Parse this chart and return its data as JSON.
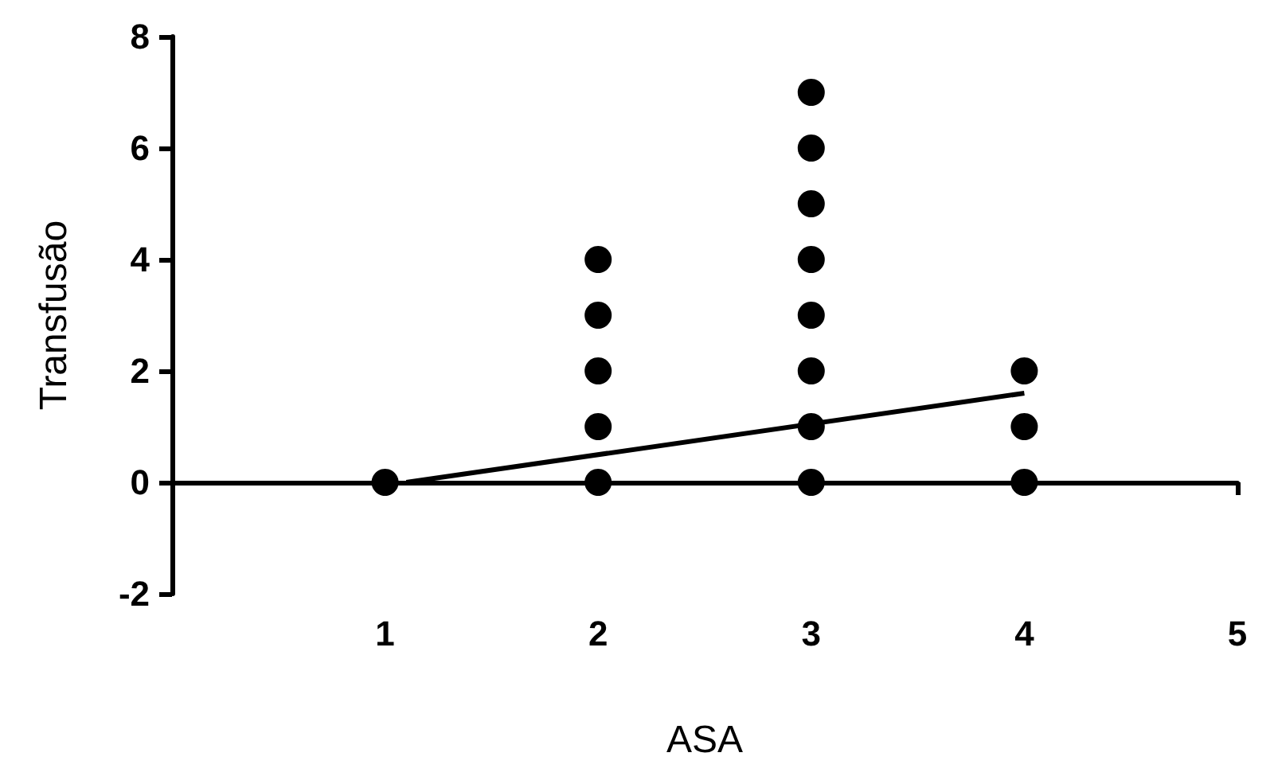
{
  "chart_data": {
    "type": "scatter",
    "xlabel": "ASA",
    "ylabel": "Transfusão",
    "xlim": [
      0,
      5
    ],
    "xticks": [
      1,
      2,
      3,
      4,
      5
    ],
    "ylim": [
      -2,
      8
    ],
    "yticks": [
      -2,
      0,
      2,
      4,
      6,
      8
    ],
    "series": [
      {
        "marker": "circle",
        "color": "#000000",
        "x": [
          1,
          2,
          2,
          2,
          2,
          2,
          3,
          3,
          3,
          3,
          3,
          3,
          3,
          3,
          4,
          4,
          4
        ],
        "values": [
          0,
          0,
          1,
          2,
          3,
          4,
          0,
          1,
          2,
          3,
          4,
          5,
          6,
          7,
          0,
          1,
          2
        ]
      },
      {
        "type": "line",
        "marker": "none",
        "color": "#000000",
        "x": [
          1.1,
          4
        ],
        "values": [
          0,
          1.6
        ]
      }
    ]
  }
}
